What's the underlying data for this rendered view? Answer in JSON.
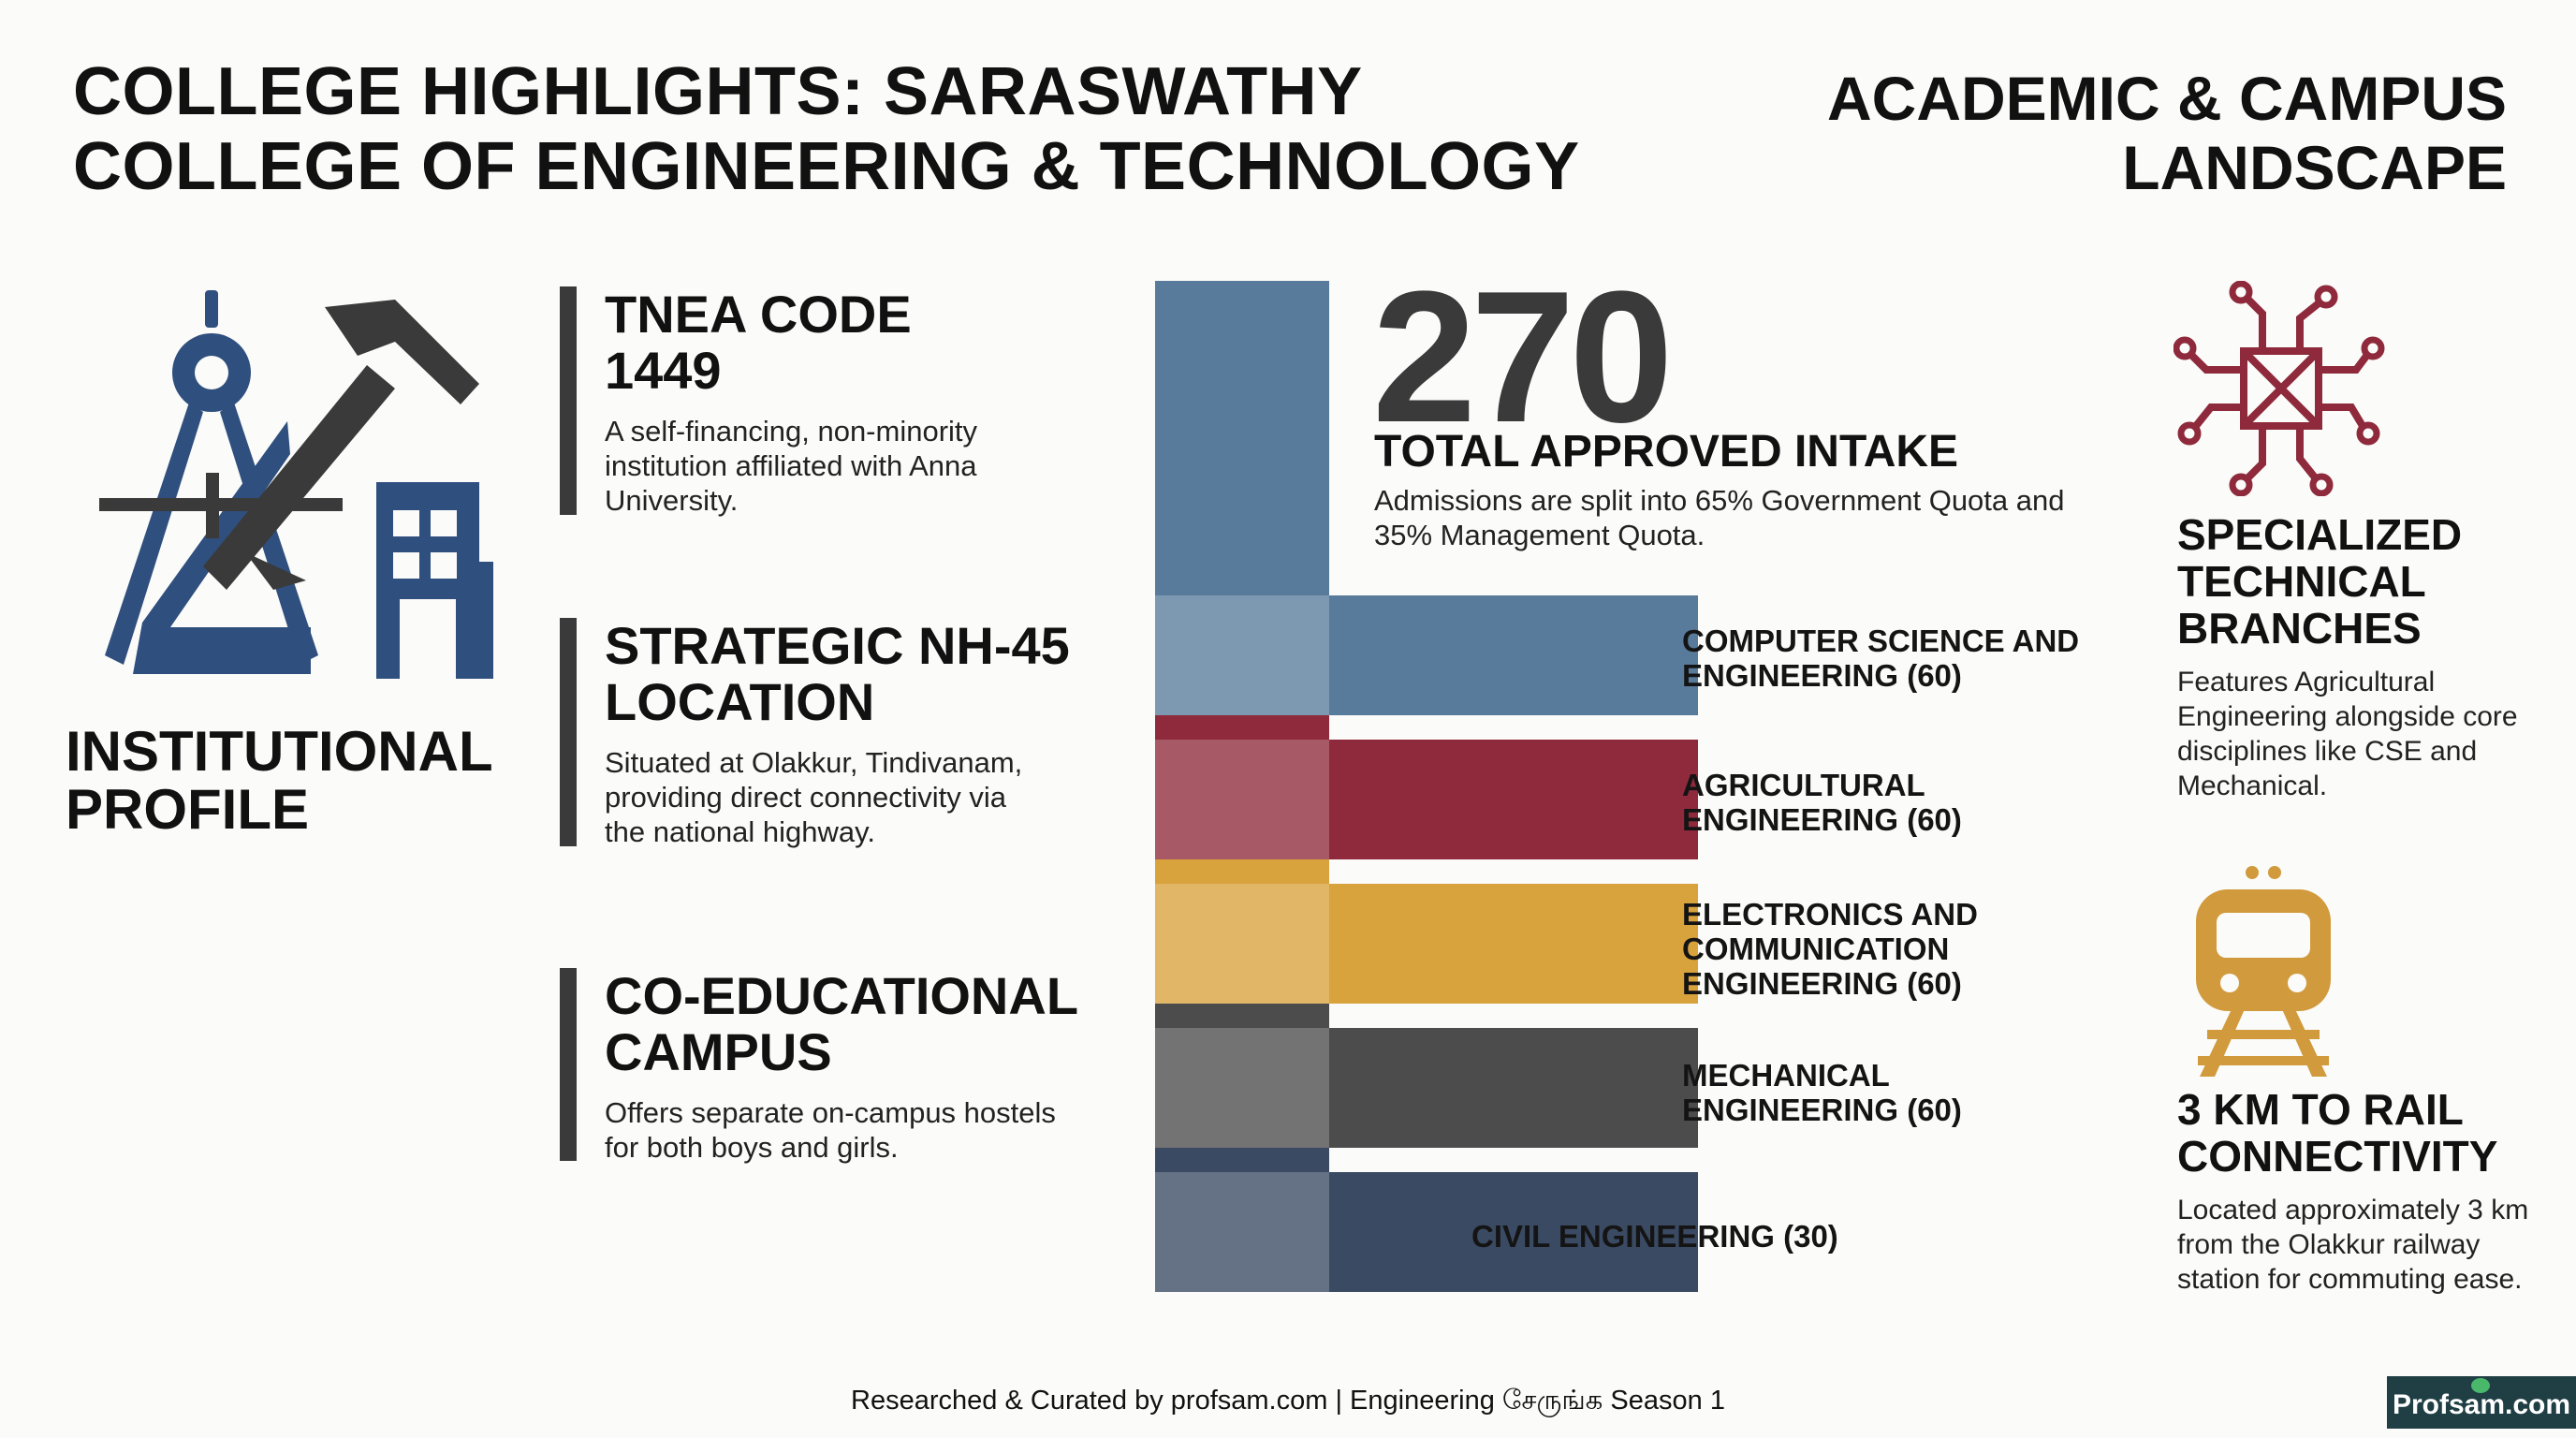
{
  "header": {
    "title": "COLLEGE HIGHLIGHTS: SARASWATHY COLLEGE OF ENGINEERING & TECHNOLOGY",
    "right_title": "ACADEMIC & CAMPUS LANDSCAPE"
  },
  "profile": {
    "label": "INSTITUTIONAL PROFILE",
    "icon": "compass-hammer-building-icon",
    "items": [
      {
        "heading": "TNEA CODE 1449",
        "text": "A self-financing, non-minority institution affiliated with Anna University."
      },
      {
        "heading": "STRATEGIC NH-45 LOCATION",
        "text": "Situated at Olakkur, Tindivanam, providing direct connectivity via the national highway."
      },
      {
        "heading": "CO-EDUCATIONAL CAMPUS",
        "text": "Offers separate on-campus hostels for both boys and girls."
      }
    ]
  },
  "intake": {
    "total": "270",
    "heading": "TOTAL APPROVED INTAKE",
    "text": "Admissions are split into 65% Government Quota and 35% Management Quota."
  },
  "chart_data": {
    "type": "bar",
    "total": 270,
    "categories": [
      "COMPUTER SCIENCE AND ENGINEERING (60)",
      "AGRICULTURAL ENGINEERING (60)",
      "ELECTRONICS AND COMMUNICATION ENGINEERING (60)",
      "MECHANICAL ENGINEERING (60)",
      "CIVIL ENGINEERING (30)"
    ],
    "values": [
      60,
      60,
      60,
      60,
      30
    ],
    "colors": [
      "#587b9b",
      "#8e2a3b",
      "#d8a23c",
      "#4c4c4c",
      "#3a4a62"
    ]
  },
  "right": {
    "branches": {
      "heading": "SPECIALIZED TECHNICAL BRANCHES",
      "text": "Features Agricultural Engineering alongside core disciplines like CSE and Mechanical.",
      "icon": "circuit-chip-icon",
      "icon_color": "#8e2a3b"
    },
    "rail": {
      "heading": "3 KM TO RAIL CONNECTIVITY",
      "text": "Located approximately 3 km from the Olakkur railway station for commuting ease.",
      "icon": "train-icon",
      "icon_color": "#d19a3d"
    }
  },
  "footer": {
    "credit": "Researched & Curated by profsam.com | Engineering சேருங்க Season 1",
    "badge": "Profsam.com"
  }
}
